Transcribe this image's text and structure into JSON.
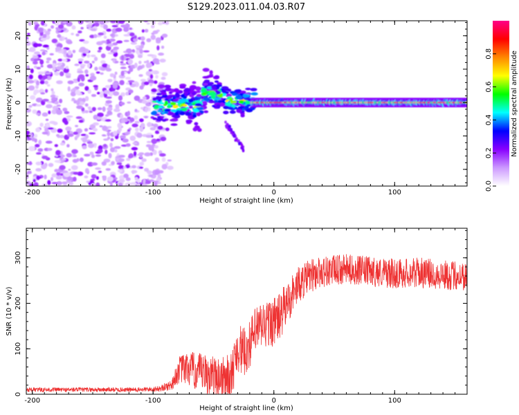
{
  "title": "S129.2023.011.04.03.R07",
  "chart_data": [
    {
      "type": "heatmap",
      "name": "spectrogram",
      "xlabel": "Height of straight line (km)",
      "ylabel": "Frequency (Hz)",
      "xlim": [
        -205,
        160
      ],
      "ylim": [
        -25,
        24.5
      ],
      "xticks": [
        -200,
        -100,
        0,
        100
      ],
      "yticks": [
        -20,
        -10,
        0,
        10,
        20
      ],
      "colorbar": {
        "label": "Normalized spectral amplitude",
        "range": [
          0,
          1
        ],
        "ticks": [
          "0.0",
          "0.2",
          "0.4",
          "0.6",
          "0.8"
        ],
        "colors": [
          "#ffffff",
          "#cc99ff",
          "#8800ff",
          "#0000ff",
          "#00ffff",
          "#00ff00",
          "#ffff00",
          "#ff8800",
          "#ff0000",
          "#ff0088"
        ]
      },
      "features": {
        "noise_region_x": [
          -205,
          -90
        ],
        "carrier_frequency_hz": 0,
        "carrier_start_x": -100,
        "sideband_tail_x": [
          -40,
          -25
        ],
        "sideband_tail_hz": [
          -6,
          -14
        ]
      }
    },
    {
      "type": "line",
      "name": "snr",
      "xlabel": "Height of straight line (km)",
      "ylabel": "SNR (10 * v/v)",
      "xlim": [
        -205,
        160
      ],
      "ylim": [
        0,
        365
      ],
      "xticks": [
        -200,
        -100,
        0,
        100
      ],
      "yticks": [
        0,
        100,
        200,
        300
      ],
      "color": "#ee3333",
      "profile": {
        "x": [
          -205,
          -110,
          -95,
          -85,
          -78,
          -70,
          -60,
          -50,
          -42,
          -35,
          -30,
          -25,
          -20,
          -15,
          -10,
          -5,
          0,
          5,
          10,
          15,
          20,
          30,
          40,
          60,
          80,
          100,
          120,
          140,
          160
        ],
        "y": [
          10,
          10,
          12,
          20,
          55,
          55,
          45,
          40,
          35,
          40,
          105,
          90,
          110,
          140,
          150,
          155,
          160,
          170,
          195,
          220,
          240,
          260,
          270,
          275,
          270,
          265,
          268,
          262,
          260
        ],
        "noise_amplitude": [
          5,
          5,
          6,
          12,
          30,
          40,
          45,
          45,
          50,
          50,
          55,
          55,
          55,
          55,
          55,
          55,
          55,
          55,
          50,
          45,
          40,
          38,
          35,
          33,
          33,
          33,
          33,
          33,
          33
        ]
      }
    }
  ]
}
